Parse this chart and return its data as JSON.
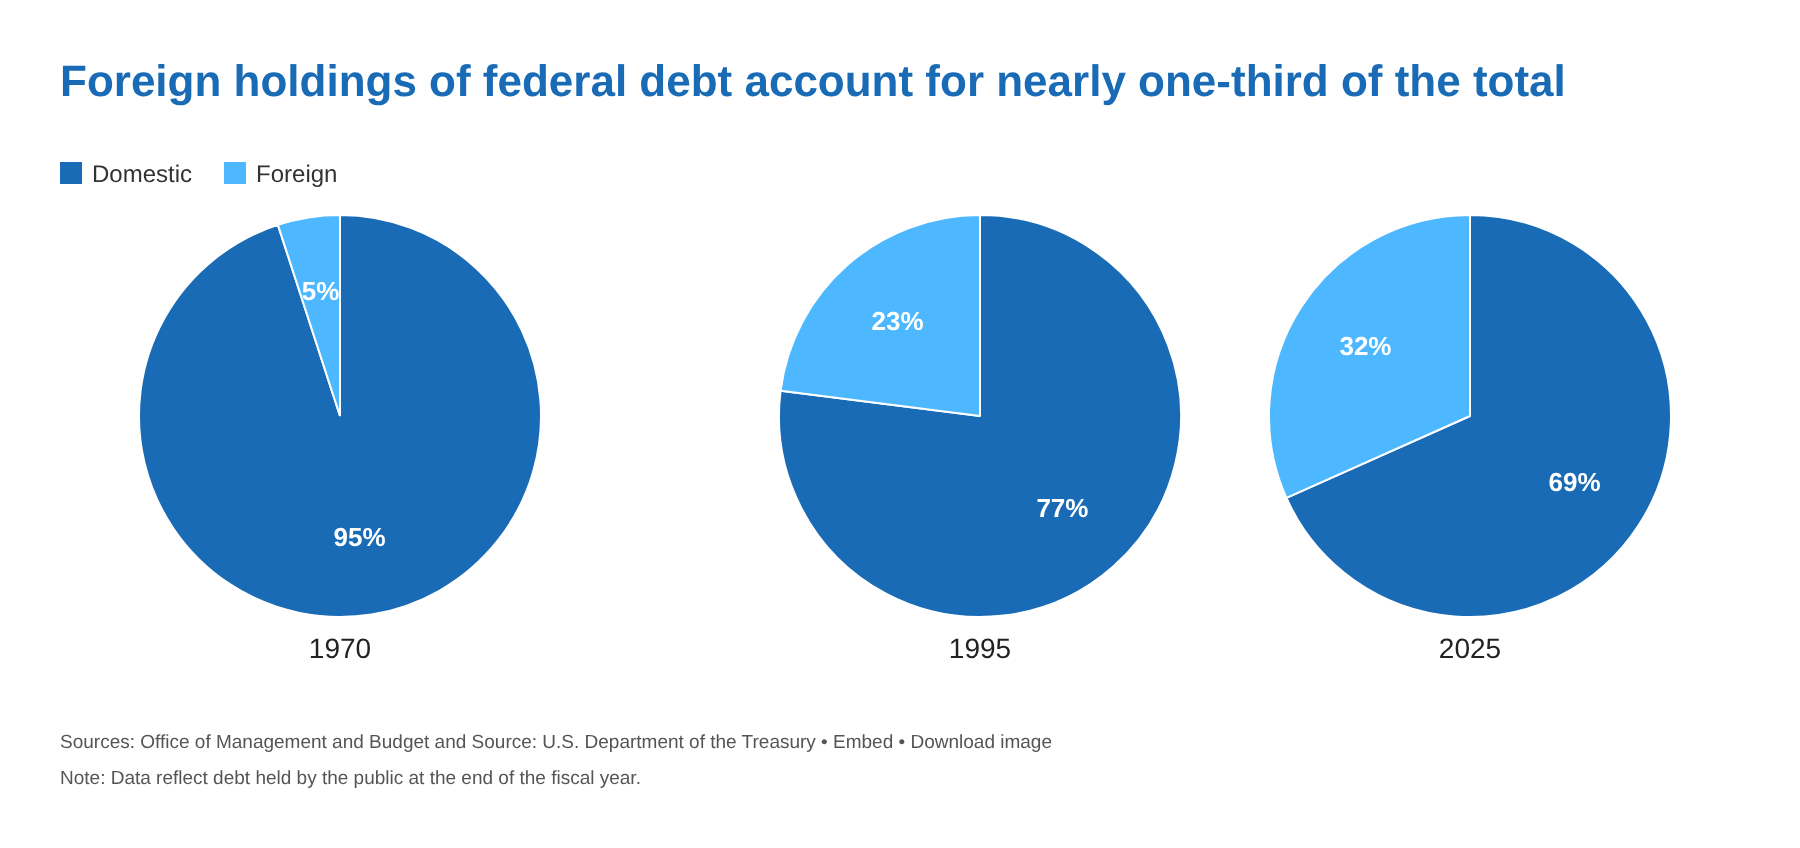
{
  "chart_data": [
    {
      "type": "pie",
      "title": "Foreign holdings of federal debt account for nearly one-third of the total",
      "xlabel": "1970",
      "categories": [
        "Domestic",
        "Foreign"
      ],
      "values": [
        95,
        5
      ],
      "value_labels": [
        "95%",
        "5%"
      ],
      "colors": [
        "#1a6bb5",
        "#4db8ff"
      ],
      "legend": "top left",
      "annotations": [
        "Sources: Office of Management and Budget and Source: U.S. Department of the Treasury • Embed • Download image",
        "Note: Data reflect debt held by the public at the end of the fiscal year."
      ]
    },
    {
      "type": "pie",
      "xlabel": "1995",
      "categories": [
        null,
        null
      ],
      "values": [
        77,
        23
      ],
      "value_labels": [
        "77%",
        "23%"
      ],
      "colors": [
        "#1a6bb5",
        "#4db8ff"
      ]
    },
    {
      "type": "pie",
      "xlabel": "2025",
      "categories": [
        null,
        null
      ],
      "values": [
        69,
        32
      ],
      "value_labels": [
        "69%",
        "32%"
      ],
      "colors": [
        "#1a6bb5",
        "#4db8ff"
      ]
    }
  ]
}
